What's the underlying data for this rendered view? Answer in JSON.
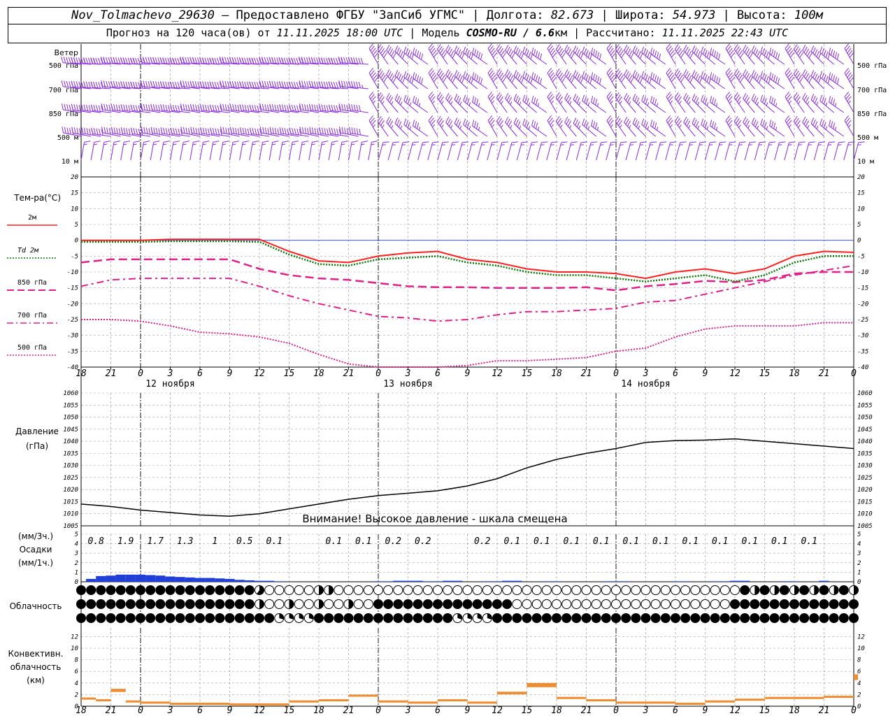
{
  "header": {
    "station": "Nov_Tolmachevo_29630",
    "provider": " – Предоставлено ФГБУ \"ЗапСиб УГМС\" | Долгота: ",
    "lon": "82.673",
    "lat_label": " | Широта: ",
    "lat": "54.973",
    "alt_label": " | Высота: ",
    "alt": "100м",
    "forecast_label": "Прогноз на 120 часа(ов) от ",
    "forecast_time": "11.11.2025 18:00 UTC",
    "model_label": " | Модель ",
    "model": "COSMO-RU / 6.6",
    "model_unit": "км",
    "calc_label": " | Рассчитано: ",
    "calc_time": "11.11.2025 22:43 UTC"
  },
  "colors": {
    "wind": "#8a2be2",
    "t2m": "#ff2020",
    "td2m": "#0a7a0a",
    "t850": "#e0208a",
    "t700": "#e0208a",
    "t500": "#e0208a",
    "pressure": "#000000",
    "precip": "#1f3fd8",
    "convective": "#f08c30",
    "zero_line": "#2040ff"
  },
  "x_axis": {
    "hour_ticks": [
      "18",
      "21",
      "0",
      "3",
      "6",
      "9",
      "12",
      "15",
      "18",
      "21",
      "0",
      "3",
      "6",
      "9",
      "12",
      "15",
      "18",
      "21",
      "0",
      "3",
      "6",
      "9",
      "12",
      "15",
      "18",
      "21",
      "0"
    ],
    "dates": [
      {
        "label": "12 ноября",
        "at_hour": 9
      },
      {
        "label": "13 ноября",
        "at_hour": 33
      },
      {
        "label": "14 ноября",
        "at_hour": 57
      }
    ]
  },
  "wind": {
    "title": "Ветер",
    "levels": [
      "500 гПа",
      "700 гПа",
      "850 гПа",
      "500 м",
      "10  м"
    ],
    "levels_right": [
      "500 гПа",
      "700 гПа",
      "850 гПа",
      "500 м",
      "10  м"
    ]
  },
  "temperature": {
    "title": "Тем-ра(°C)",
    "legend": [
      {
        "label": "2м",
        "style": "solid"
      },
      {
        "label": "Td  2м",
        "style": "dotted"
      },
      {
        "label": "850 гПа",
        "style": "dash"
      },
      {
        "label": "700 гПа",
        "style": "dashdot"
      },
      {
        "label": "500 гПа",
        "style": "short"
      }
    ],
    "y_ticks": [
      "20",
      "15",
      "10",
      "5",
      "0",
      "-5",
      "-10",
      "-15",
      "-20",
      "-25",
      "-30",
      "-35",
      "-40"
    ]
  },
  "pressure": {
    "title": "Давление",
    "unit": "(гПа)",
    "warning": "Внимание! Высокое давление - шкала смещена",
    "y_ticks": [
      "1060",
      "1055",
      "1050",
      "1045",
      "1040",
      "1035",
      "1030",
      "1025",
      "1020",
      "1015",
      "1010",
      "1005"
    ]
  },
  "precip": {
    "unit3": "(мм/3ч.)",
    "title": "Осадки",
    "unit1": "(мм/1ч.)",
    "y_ticks": [
      "5",
      "4",
      "3",
      "2",
      "1",
      "0"
    ],
    "labels": [
      "0.8",
      "1.9",
      "1.7",
      "1.3",
      "1",
      "0.5",
      "0.1",
      "",
      "0.1",
      "0.1",
      "0.2",
      "0.2",
      "",
      "0.2",
      "0.1",
      "0.1",
      "0.1",
      "0.1",
      "0.1",
      "0.1",
      "0.1",
      "0.1",
      "0.1",
      "0.1",
      "0.1",
      ""
    ]
  },
  "cloud": {
    "title": "Облачность"
  },
  "convective": {
    "title1": "Конвективн.",
    "title2": "облачность",
    "unit": "(км)",
    "y_ticks": [
      "12",
      "10",
      "8",
      "6",
      "4",
      "2",
      "0"
    ]
  },
  "chart_data": {
    "type": "line",
    "x_hours_from_start": "0..78 step 3 (from 11.11 18 UTC)",
    "temperature": {
      "x": [
        0,
        3,
        6,
        9,
        12,
        15,
        18,
        21,
        24,
        27,
        30,
        33,
        36,
        39,
        42,
        45,
        48,
        51,
        54,
        57,
        60,
        63,
        66,
        69,
        72,
        75,
        78
      ],
      "t2m": [
        0,
        0,
        0,
        0.3,
        0.3,
        0.3,
        0.3,
        -3.5,
        -6.5,
        -7,
        -5,
        -4,
        -3.5,
        -6,
        -7,
        -9,
        -10,
        -10,
        -10.5,
        -12,
        -10,
        -9,
        -10.5,
        -9,
        -5,
        -3.5,
        -3.8
      ],
      "td2m": [
        -0.5,
        -0.5,
        -0.5,
        -0.3,
        -0.3,
        -0.3,
        -0.5,
        -4.5,
        -7.5,
        -8,
        -6,
        -5.5,
        -5,
        -7,
        -8,
        -10,
        -11,
        -11,
        -12,
        -13,
        -12,
        -11,
        -13,
        -11,
        -7,
        -5,
        -5
      ],
      "t850": [
        -7,
        -6,
        -6,
        -6,
        -6,
        -6,
        -9,
        -11,
        -12,
        -12.5,
        -13.5,
        -14.5,
        -14.8,
        -14.8,
        -15,
        -15,
        -15,
        -14.8,
        -15.8,
        -14.5,
        -13.8,
        -12.8,
        -13.2,
        -12.5,
        -10.5,
        -10,
        -10
      ],
      "t700": [
        -14.5,
        -12.5,
        -12,
        -12,
        -12,
        -12,
        -14.5,
        -17.5,
        -20,
        -22,
        -24,
        -24.5,
        -25.5,
        -25,
        -23.5,
        -22.5,
        -22.5,
        -22,
        -21.5,
        -19.5,
        -19,
        -17,
        -15,
        -13,
        -11,
        -9.5,
        -8
      ],
      "t500": [
        -25,
        -25,
        -25.5,
        -27,
        -29,
        -29.5,
        -30.5,
        -32.5,
        -36,
        -39,
        -41,
        -41.5,
        -41,
        -39.5,
        -38,
        -38,
        -37.5,
        -37,
        -35,
        -34,
        -30.5,
        -28,
        -27,
        -27,
        -27,
        -26,
        -26
      ]
    },
    "pressure": {
      "x": [
        0,
        3,
        6,
        9,
        12,
        15,
        18,
        21,
        24,
        27,
        30,
        33,
        36,
        39,
        42,
        45,
        48,
        51,
        54,
        57,
        60,
        63,
        66,
        69,
        72,
        75,
        78
      ],
      "values": [
        1014,
        1013,
        1011.5,
        1010.5,
        1009.5,
        1009,
        1010,
        1012,
        1014,
        1016,
        1017.5,
        1018.5,
        1019.5,
        1021.5,
        1024.5,
        1029,
        1032.5,
        1035,
        1037,
        1039.5,
        1040.3,
        1040.5,
        1041,
        1040,
        1039,
        1038,
        1037
      ]
    },
    "precip_1h": {
      "x_start": 1,
      "step": 1,
      "values": [
        0.3,
        0.6,
        0.65,
        0.75,
        0.75,
        0.75,
        0.7,
        0.65,
        0.55,
        0.5,
        0.45,
        0.4,
        0.4,
        0.35,
        0.3,
        0.2,
        0.15,
        0.1,
        0.1,
        0.05,
        0,
        0,
        0,
        0,
        0,
        0,
        0,
        0,
        0,
        0.05,
        0.05,
        0.1,
        0.1,
        0.1,
        0.05,
        0.05,
        0.1,
        0.1,
        0,
        0,
        0.05,
        0.05,
        0.1,
        0.1,
        0,
        0,
        0.05,
        0.05,
        0,
        0,
        0,
        0,
        0.05,
        0.05,
        0.05,
        0,
        0,
        0,
        0,
        0.05,
        0.05,
        0,
        0,
        0.05,
        0.05,
        0.1,
        0.1,
        0,
        0,
        0,
        0.05,
        0.05,
        0,
        0,
        0.1,
        0,
        0
      ]
    },
    "convective_top_km": {
      "x": [
        0,
        1.5,
        3,
        4.5,
        6,
        9,
        12,
        15,
        18,
        21,
        24,
        27,
        30,
        33,
        36,
        39,
        42,
        45,
        48,
        51,
        54,
        57,
        60,
        63,
        66,
        69,
        72,
        75,
        78
      ],
      "values": [
        1.5,
        1.2,
        3,
        1,
        0.8,
        0.6,
        0.6,
        0.5,
        0.5,
        1,
        1.2,
        2,
        1,
        0.8,
        1.2,
        0.8,
        2.5,
        4,
        1.6,
        1.2,
        0.8,
        0.8,
        0.6,
        1,
        1.3,
        1.6,
        1.6,
        1.8,
        5.5
      ]
    }
  }
}
